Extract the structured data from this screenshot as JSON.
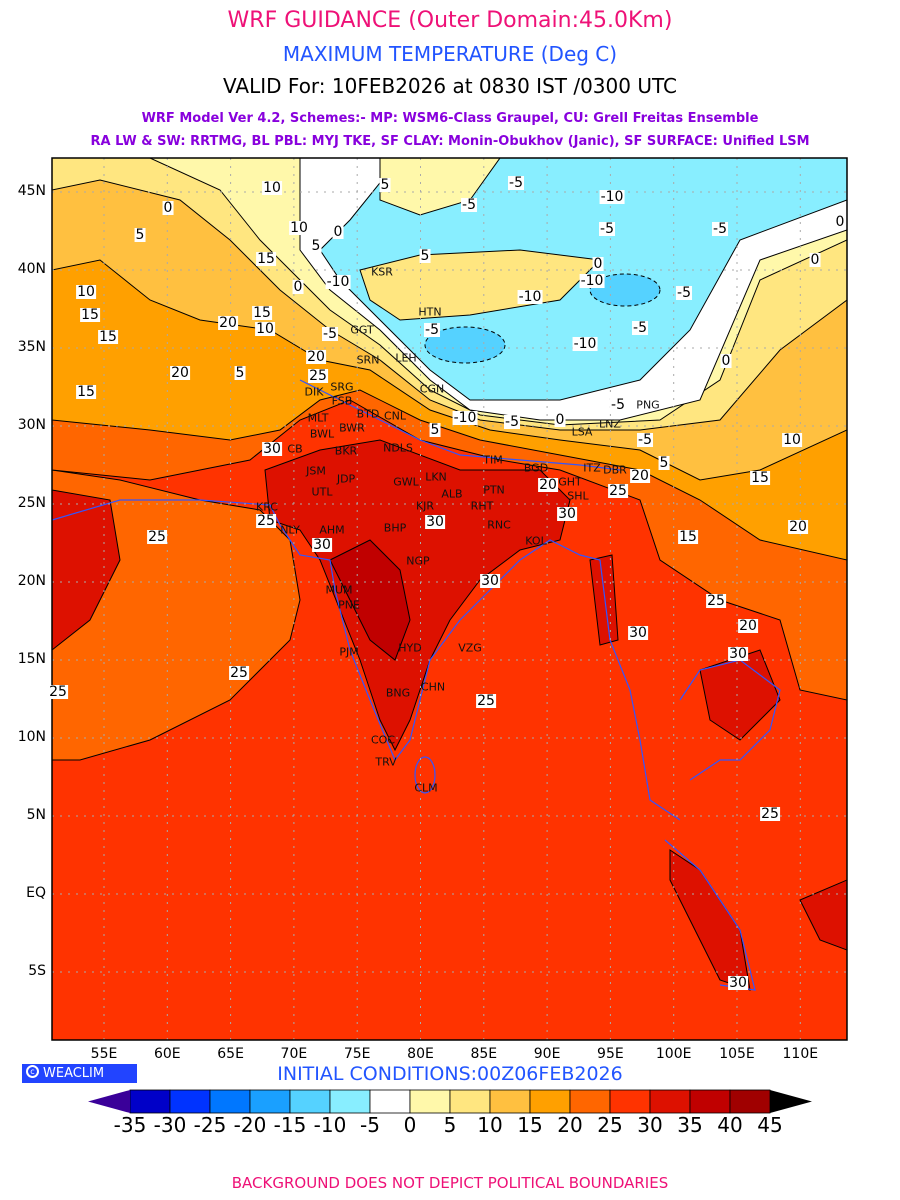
{
  "header": {
    "title": "WRF GUIDANCE (Outer Domain:45.0Km)",
    "variable": "MAXIMUM TEMPERATURE (Deg C)",
    "valid": "VALID For: 10FEB2026 at 0830 IST /0300 UTC",
    "model_line1": "WRF Model Ver 4.2, Schemes:- MP: WSM6-Class Graupel, CU: Grell Freitas Ensemble",
    "model_line2": "RA LW & SW: RRTMG, BL PBL: MYJ TKE, SF CLAY: Monin-Obukhov (Janic), SF SURFACE: Unified LSM"
  },
  "axes": {
    "lat_labels": [
      "45N",
      "40N",
      "35N",
      "30N",
      "25N",
      "20N",
      "15N",
      "10N",
      "5N",
      "EQ",
      "5S"
    ],
    "lon_labels": [
      "55E",
      "60E",
      "65E",
      "70E",
      "75E",
      "80E",
      "85E",
      "90E",
      "95E",
      "100E",
      "105E",
      "110E"
    ]
  },
  "map": {
    "cities": [
      "KSR",
      "HTN",
      "GGT",
      "SRN",
      "LEH",
      "CGN",
      "DIK",
      "SRG",
      "FSB",
      "MLT",
      "BWL",
      "BWR",
      "BTD",
      "CNL",
      "NDLS",
      "CB",
      "BKR",
      "JSM",
      "JDP",
      "UTL",
      "GWL",
      "LKN",
      "KJR",
      "ALB",
      "PTN",
      "RHT",
      "RNC",
      "KOL",
      "BHP",
      "AHM",
      "KRC",
      "NLY",
      "MUM",
      "PNE",
      "NGP",
      "HYD",
      "VZG",
      "PJM",
      "BNG",
      "CHN",
      "COC",
      "TRV",
      "CLM",
      "PNG",
      "LSA",
      "LNZ",
      "TIM",
      "BGD",
      "GHT",
      "SHL",
      "ITZ",
      "DBR"
    ],
    "contour_labels": [
      "10",
      "5",
      "0",
      "5",
      "10",
      "5",
      "0",
      "15",
      "5",
      "10",
      "15",
      "15",
      "20",
      "15",
      "10",
      "0",
      "-10",
      "-5",
      "20",
      "20",
      "5",
      "15",
      "25",
      "30",
      "25",
      "25",
      "30",
      "30",
      "30",
      "25",
      "25",
      "25",
      "30",
      "25",
      "20",
      "30",
      "25",
      "30",
      "10",
      "15",
      "20",
      "15",
      "25",
      "20",
      "30",
      "20",
      "-5",
      "-10",
      "-5",
      "-5",
      "-5",
      "0",
      "0",
      "0",
      "-10",
      "-5",
      "-10",
      "-5",
      "-10",
      "-5",
      "0",
      "-5",
      "-10",
      "-5",
      "0",
      "5",
      "-5",
      "5"
    ]
  },
  "logo": {
    "text": "WEACLIM"
  },
  "initial_conditions": "INITIAL CONDITIONS:00Z06FEB2026",
  "colorbar": {
    "labels": [
      "-35",
      "-30",
      "-25",
      "-20",
      "-15",
      "-10",
      "-5",
      "0",
      "5",
      "10",
      "15",
      "20",
      "25",
      "30",
      "35",
      "40",
      "45"
    ],
    "colors": [
      "#0000c8",
      "#0033ff",
      "#0077ff",
      "#1aa0ff",
      "#55d2ff",
      "#88eeff",
      "#ffffff",
      "#fff8aa",
      "#ffe680",
      "#ffc040",
      "#ffa000",
      "#ff6600",
      "#ff3300",
      "#dd1100",
      "#c00000",
      "#a00000"
    ],
    "under_color": "#3a0099",
    "over_color": "#000000"
  },
  "footer": "BACKGROUND DOES NOT DEPICT POLITICAL BOUNDARIES"
}
